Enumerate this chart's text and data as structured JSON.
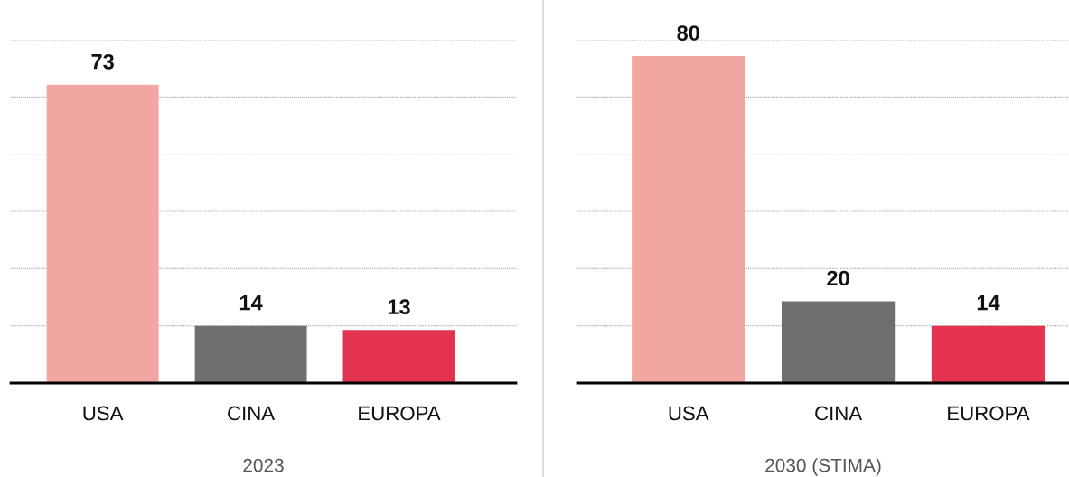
{
  "chart_data": [
    {
      "type": "bar",
      "categories": [
        "USA",
        "CINA",
        "EUROPA"
      ],
      "values": [
        73,
        14,
        13
      ],
      "colors": [
        "#f2a6a2",
        "#706f70",
        "#e3344f"
      ],
      "xlabel": "2023",
      "data_labels": true,
      "yticks": [
        {
          "value": 14,
          "label": null
        },
        {
          "value": 28,
          "label": null
        },
        {
          "value": 42,
          "label": null
        },
        {
          "value": 56,
          "label": null
        },
        {
          "value": 70,
          "label": null
        },
        {
          "value": 84,
          "label": null
        }
      ],
      "grid": "y",
      "tick_labels": "x"
    },
    {
      "type": "bar",
      "categories": [
        "USA",
        "CINA",
        "EUROPA"
      ],
      "values": [
        80,
        20,
        14
      ],
      "colors": [
        "#f2a6a2",
        "#706f70",
        "#e3344f"
      ],
      "xlabel": "2030 (STIMA)",
      "data_labels": true,
      "yticks": [
        {
          "value": 14,
          "label": null
        },
        {
          "value": 28,
          "label": null
        },
        {
          "value": 42,
          "label": null
        },
        {
          "value": 56,
          "label": null
        },
        {
          "value": 70,
          "label": null
        },
        {
          "value": 84,
          "label": null
        }
      ],
      "grid": "y",
      "tick_labels": "x"
    }
  ]
}
